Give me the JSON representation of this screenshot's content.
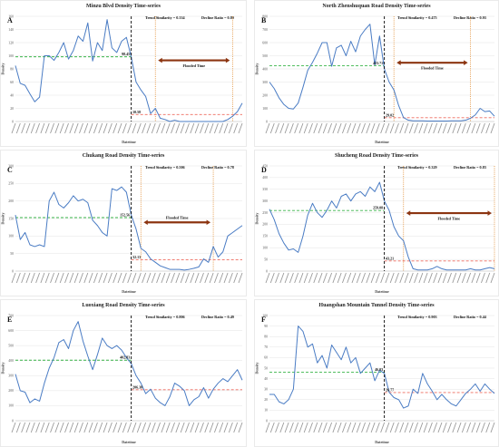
{
  "colors": {
    "background": "#ffffff",
    "series": "#4a7cc4",
    "pre_mean": "#3ab54a",
    "post_mean": "#ee6b5f",
    "divider": "#000000",
    "flood_bounds": "#e0892c",
    "flood_arrow": "#8c3511",
    "grid": "#e4e4e4"
  },
  "chart_data": [
    {
      "panel": "A",
      "type": "line",
      "title": "Minzu Blvd Density Time-series",
      "trend_similarity": "Trend Similarity = 0.334",
      "decline_ratio": "Decline Ratio = 0.89",
      "xlabel": "Datetime",
      "ylabel": "Density",
      "ylim": [
        0,
        160
      ],
      "yticks": [
        0,
        20,
        40,
        60,
        80,
        100,
        120,
        140,
        160
      ],
      "grid": true,
      "values": [
        85,
        58,
        55,
        42,
        30,
        37,
        100,
        100,
        93,
        105,
        120,
        95,
        108,
        130,
        122,
        150,
        92,
        120,
        108,
        155,
        112,
        105,
        122,
        128,
        98,
        60,
        48,
        38,
        12,
        20,
        5,
        3,
        0,
        2,
        0,
        0,
        0,
        0,
        0,
        0,
        0,
        0,
        0,
        0,
        3,
        8,
        15,
        28
      ],
      "pre_mean": {
        "label": "98.45"
      },
      "post_mean": {
        "label": "10.58"
      },
      "divider_index": 24,
      "flood": {
        "label": "Flooded Time",
        "start_index": 29,
        "end_index": 45,
        "arrow_level": 93
      }
    },
    {
      "panel": "B",
      "type": "line",
      "title": "North Zhenshuquan Road Density Time-series",
      "trend_similarity": "Trend Similarity = 0.475",
      "decline_ratio": "Decline Ratio = 0.93",
      "xlabel": "Datetime",
      "ylabel": "Density",
      "ylim": [
        0,
        800
      ],
      "yticks": [
        0,
        100,
        200,
        300,
        400,
        500,
        600,
        700,
        800
      ],
      "grid": true,
      "values": [
        300,
        250,
        180,
        130,
        100,
        95,
        140,
        260,
        390,
        450,
        520,
        600,
        600,
        420,
        560,
        580,
        500,
        610,
        530,
        650,
        700,
        740,
        430,
        650,
        400,
        300,
        240,
        120,
        30,
        10,
        5,
        5,
        5,
        3,
        3,
        3,
        3,
        3,
        5,
        5,
        5,
        10,
        25,
        50,
        100,
        75,
        80,
        40
      ],
      "pre_mean": {
        "label": "423.71"
      },
      "post_mean": {
        "label": "29.02"
      },
      "divider_index": 24,
      "flood": {
        "label": "Flooded Time",
        "start_index": 26,
        "end_index": 42,
        "arrow_level": 447
      }
    },
    {
      "panel": "C",
      "type": "line",
      "title": "Chukang Road Density Time-series",
      "trend_similarity": "Trend Similarity = 0.506",
      "decline_ratio": "Decline Ratio = 0.78",
      "xlabel": "Datetime",
      "ylabel": "Density",
      "ylim": [
        0,
        300
      ],
      "yticks": [
        0,
        50,
        100,
        150,
        200,
        250,
        300
      ],
      "grid": true,
      "values": [
        160,
        90,
        110,
        75,
        70,
        75,
        70,
        200,
        225,
        190,
        180,
        195,
        215,
        200,
        205,
        195,
        145,
        130,
        110,
        100,
        235,
        230,
        240,
        225,
        160,
        120,
        65,
        55,
        35,
        25,
        15,
        10,
        5,
        5,
        5,
        3,
        5,
        8,
        12,
        35,
        25,
        70,
        40,
        55,
        100,
        110,
        120,
        130
      ],
      "pre_mean": {
        "label": "152.56"
      },
      "post_mean": {
        "label": "32.13"
      },
      "divider_index": 24,
      "flood": {
        "label": "Flooded Time",
        "start_index": 26,
        "end_index": 41,
        "arrow_level": 139
      }
    },
    {
      "panel": "D",
      "type": "line",
      "title": "Shucheng Road Density Time-series",
      "trend_similarity": "Trend Similarity = 0.329",
      "decline_ratio": "Decline Ratio = 0.83",
      "xlabel": "Datetime",
      "ylabel": "Density",
      "ylim": [
        0,
        450
      ],
      "yticks": [
        0,
        50,
        100,
        150,
        200,
        250,
        300,
        350,
        400,
        450
      ],
      "grid": true,
      "values": [
        265,
        220,
        160,
        120,
        90,
        95,
        80,
        150,
        240,
        290,
        250,
        230,
        260,
        300,
        270,
        320,
        330,
        300,
        330,
        340,
        320,
        360,
        340,
        380,
        300,
        260,
        190,
        150,
        130,
        60,
        10,
        5,
        5,
        5,
        10,
        20,
        10,
        5,
        5,
        5,
        5,
        5,
        10,
        5,
        5,
        10,
        15,
        10
      ],
      "pre_mean": {
        "label": "259.08"
      },
      "post_mean": {
        "label": "43.21"
      },
      "divider_index": 24,
      "flood": {
        "label": "Flooded Time",
        "start_index": 28,
        "end_index": 47,
        "arrow_level": 248
      }
    },
    {
      "panel": "E",
      "type": "line",
      "title": "Luoxiang Road Density Time-series",
      "trend_similarity": "Trend Similarity = 0.806",
      "decline_ratio": "Decline Ratio = 0.49",
      "xlabel": "Datetime",
      "ylabel": "Density",
      "ylim": [
        0,
        700
      ],
      "yticks": [
        0,
        100,
        200,
        300,
        400,
        500,
        600,
        700
      ],
      "grid": true,
      "values": [
        310,
        200,
        190,
        120,
        145,
        130,
        250,
        350,
        420,
        520,
        540,
        480,
        600,
        660,
        530,
        430,
        340,
        440,
        550,
        500,
        480,
        500,
        470,
        420,
        380,
        300,
        250,
        180,
        210,
        150,
        120,
        100,
        160,
        250,
        230,
        200,
        100,
        140,
        160,
        220,
        150,
        210,
        250,
        280,
        260,
        300,
        340,
        270
      ],
      "pre_mean": {
        "label": "402.83"
      },
      "post_mean": {
        "label": "206.38"
      },
      "divider_index": 24
    },
    {
      "panel": "F",
      "type": "line",
      "title": "Huangshan Mountain Tunnel Density Time-series",
      "trend_similarity": "Trend Similarity = 0.903",
      "decline_ratio": "Decline Ratio = 0.44",
      "xlabel": "Datetime",
      "ylabel": "Density",
      "ylim": [
        0,
        100
      ],
      "yticks": [
        0,
        10,
        20,
        30,
        40,
        50,
        60,
        70,
        80,
        90,
        100
      ],
      "grid": true,
      "values": [
        25,
        25,
        18,
        16,
        20,
        30,
        90,
        85,
        70,
        73,
        55,
        62,
        50,
        72,
        65,
        58,
        70,
        55,
        60,
        45,
        50,
        55,
        38,
        48,
        45,
        27,
        22,
        20,
        12,
        14,
        30,
        26,
        45,
        35,
        28,
        20,
        25,
        20,
        16,
        14,
        20,
        26,
        30,
        35,
        28,
        35,
        30,
        26
      ],
      "pre_mean": {
        "label": "46.03"
      },
      "post_mean": {
        "label": "26.77"
      },
      "divider_index": 24
    }
  ]
}
